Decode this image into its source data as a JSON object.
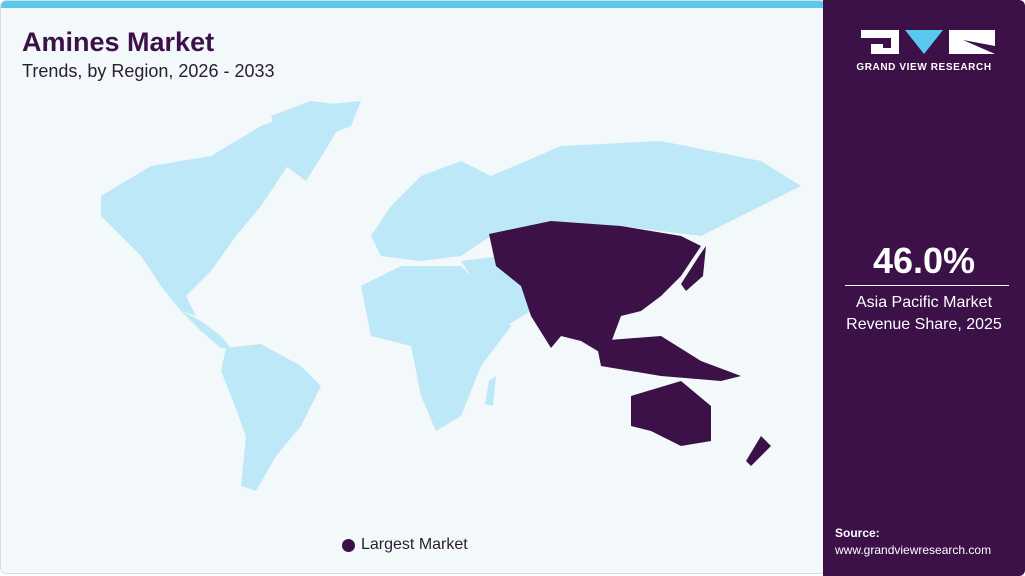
{
  "header": {
    "title": "Amines Market",
    "subtitle": "Trends, by Region, 2026 - 2033"
  },
  "map": {
    "highlighted_region": "Asia Pacific",
    "colors": {
      "highlight": "#3b1148",
      "other": "#bde8f8",
      "background": "#f3f8fa",
      "accent_bar": "#5bc8f0"
    }
  },
  "legend": {
    "label": "Largest Market"
  },
  "sidebar": {
    "brand": "GRAND VIEW RESEARCH",
    "stat_value": "46.0%",
    "stat_label_line1": "Asia Pacific Market",
    "stat_label_line2": "Revenue Share, 2025",
    "source_label": "Source:",
    "source_url": "www.grandviewresearch.com"
  }
}
